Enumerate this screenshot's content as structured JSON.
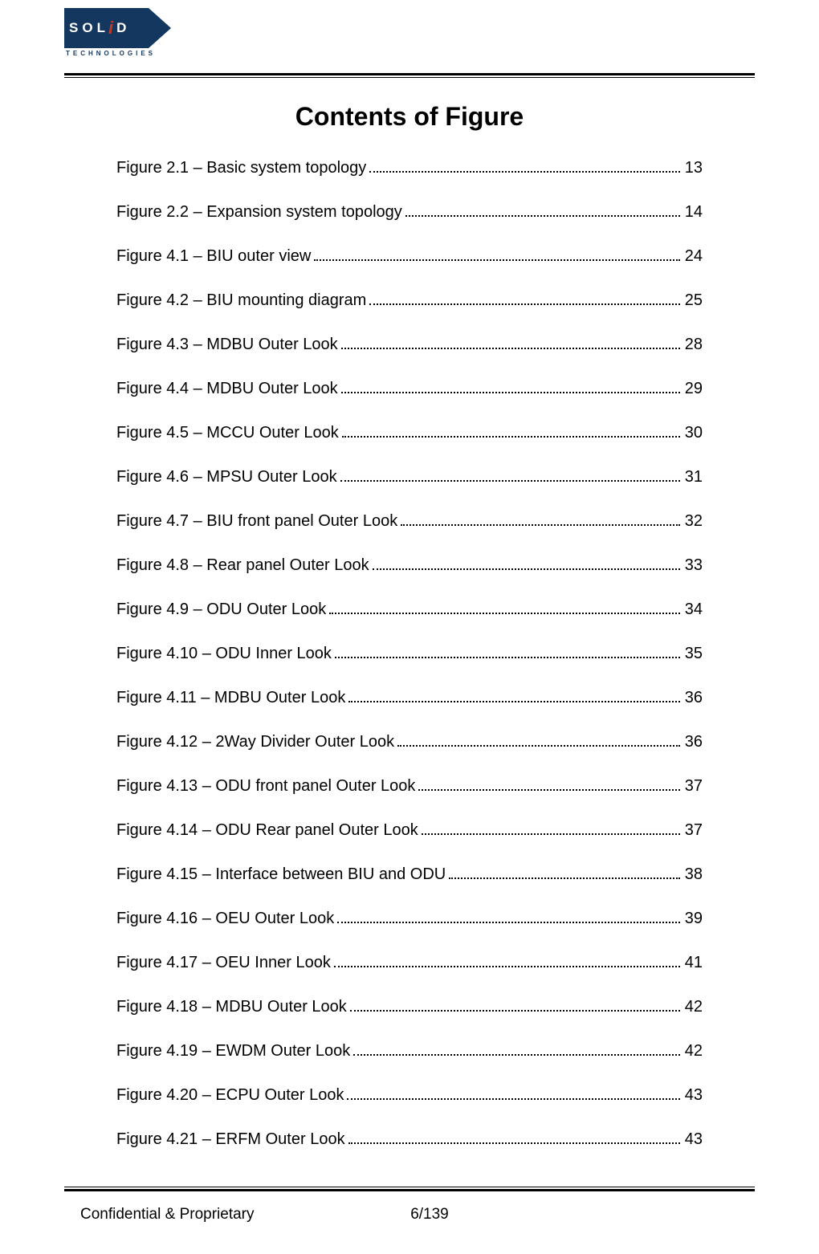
{
  "logo": {
    "letters": [
      "S",
      "O",
      "L",
      "D"
    ],
    "accent_letter": "i",
    "subtext": "TECHNOLOGIES",
    "box_color": "#14375f",
    "accent_color": "#c0392b",
    "text_color": "#ffffff"
  },
  "title": "Contents of Figure",
  "entries": [
    {
      "label": "Figure 2.1 – Basic system topology",
      "page": "13"
    },
    {
      "label": "Figure 2.2 – Expansion system topology",
      "page": "14"
    },
    {
      "label": "Figure 4.1 – BIU outer view",
      "page": "24"
    },
    {
      "label": "Figure 4.2 – BIU mounting diagram",
      "page": "25"
    },
    {
      "label": "Figure 4.3 – MDBU Outer Look",
      "page": "28"
    },
    {
      "label": "Figure 4.4 – MDBU Outer Look",
      "page": "29"
    },
    {
      "label": "Figure 4.5 – MCCU Outer Look",
      "page": "30"
    },
    {
      "label": "Figure 4.6 – MPSU Outer Look",
      "page": "31"
    },
    {
      "label": "Figure 4.7 – BIU front panel Outer Look",
      "page": "32"
    },
    {
      "label": "Figure 4.8 – Rear panel Outer Look",
      "page": "33"
    },
    {
      "label": "Figure 4.9 – ODU Outer Look",
      "page": "34"
    },
    {
      "label": "Figure 4.10 – ODU Inner Look",
      "page": "35"
    },
    {
      "label": "Figure 4.11 – MDBU Outer Look",
      "page": "36"
    },
    {
      "label": "Figure 4.12 – 2Way Divider Outer Look",
      "page": "36"
    },
    {
      "label": "Figure 4.13 – ODU front panel Outer Look",
      "page": "37"
    },
    {
      "label": "Figure 4.14 – ODU Rear panel Outer Look",
      "page": "37"
    },
    {
      "label": "Figure 4.15 – Interface between BIU and ODU",
      "page": "38"
    },
    {
      "label": "Figure 4.16 – OEU Outer Look",
      "page": "39"
    },
    {
      "label": "Figure 4.17 – OEU Inner Look",
      "page": "41"
    },
    {
      "label": "Figure 4.18 – MDBU Outer Look",
      "page": "42"
    },
    {
      "label": "Figure 4.19 – EWDM Outer Look",
      "page": "42"
    },
    {
      "label": "Figure 4.20 – ECPU Outer Look",
      "page": "43"
    },
    {
      "label": "Figure 4.21 – ERFM Outer Look",
      "page": "43"
    }
  ],
  "footer": {
    "left": "Confidential & Proprietary",
    "center": "6/139"
  },
  "style": {
    "body_font": "Arial",
    "title_fontsize": 32,
    "entry_fontsize": 20,
    "footer_fontsize": 19,
    "background_color": "#ffffff",
    "text_color": "#000000",
    "rule_color": "#000000"
  }
}
